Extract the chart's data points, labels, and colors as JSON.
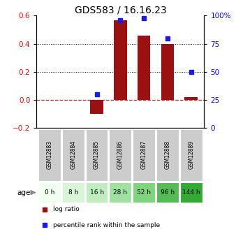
{
  "title": "GDS583 / 16.16.23",
  "samples": [
    "GSM12883",
    "GSM12884",
    "GSM12885",
    "GSM12886",
    "GSM12887",
    "GSM12888",
    "GSM12889"
  ],
  "ages": [
    "0 h",
    "8 h",
    "16 h",
    "28 h",
    "52 h",
    "96 h",
    "144 h"
  ],
  "log_ratio": [
    0.0,
    0.0,
    -0.1,
    0.565,
    0.46,
    0.4,
    0.02
  ],
  "percentile": [
    null,
    null,
    30.0,
    96.0,
    98.0,
    80.0,
    50.0
  ],
  "left_ylim": [
    -0.2,
    0.6
  ],
  "right_ylim": [
    0,
    100
  ],
  "left_yticks": [
    -0.2,
    0.0,
    0.2,
    0.4,
    0.6
  ],
  "right_yticks": [
    0,
    25,
    50,
    75,
    100
  ],
  "right_yticklabels": [
    "0",
    "25",
    "50",
    "75",
    "100%"
  ],
  "bar_color": "#9b1010",
  "dot_color": "#1a1aee",
  "grid_color": "#000000",
  "zero_line_color": "#cc2222",
  "age_colors": [
    "#f0fff0",
    "#d8f5d8",
    "#c0edc0",
    "#a0e0a0",
    "#80d480",
    "#55bb55",
    "#33aa33"
  ],
  "gsm_bg": "#cccccc",
  "legend_log_ratio": "log ratio",
  "legend_percentile": "percentile rank within the sample",
  "age_label": "age"
}
